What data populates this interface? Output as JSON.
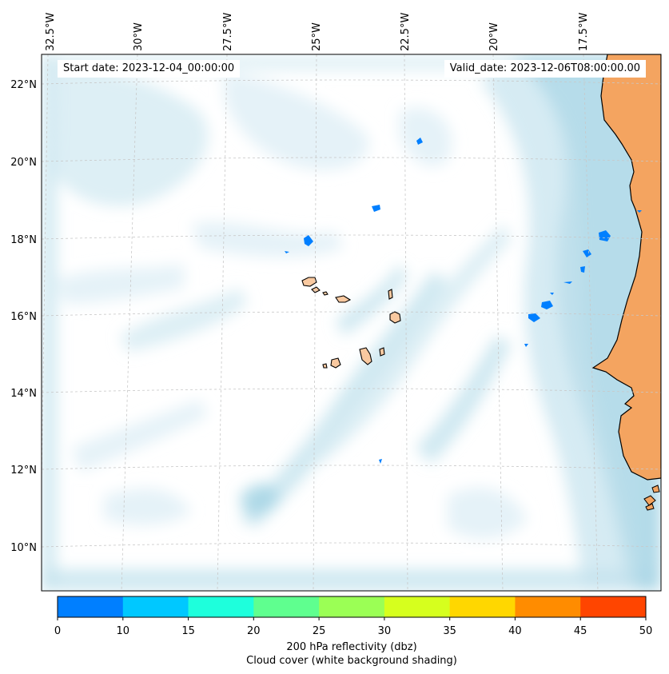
{
  "map": {
    "title_left": "Start date: 2023-12-04_00:00:00",
    "title_right": "Valid_date: 2023-12-06T08:00:00.00",
    "longitude_ticks": [
      "32.5°W",
      "30°W",
      "27.5°W",
      "25°W",
      "22.5°W",
      "20°W",
      "17.5°W"
    ],
    "latitude_ticks": [
      "22°N",
      "20°N",
      "18°N",
      "16°N",
      "14°N",
      "12°N",
      "10°N"
    ],
    "colors": {
      "ocean": "#ffffff",
      "cloud_light": "#e2f1f7",
      "cloud_mid": "#c4e3ee",
      "cloud_dark": "#a9d6e6",
      "land": "#f4a460",
      "coastline": "#000000",
      "reflectivity_low": "#007fff",
      "gridline": "#c8c8c8"
    },
    "layers": [
      "cloud-cover",
      "land",
      "coastline",
      "reflectivity",
      "gridlines"
    ]
  },
  "colorbar": {
    "ticks": [
      "0",
      "10",
      "15",
      "20",
      "25",
      "30",
      "35",
      "40",
      "45",
      "50"
    ],
    "colors": [
      "#007fff",
      "#00c8ff",
      "#1effdc",
      "#5fff8f",
      "#9bff55",
      "#d6ff1e",
      "#ffd700",
      "#ff8c00",
      "#ff4500"
    ],
    "label_line1": "200 hPa reflectivity (dbz)",
    "label_line2": "Cloud cover (white background shading)"
  }
}
